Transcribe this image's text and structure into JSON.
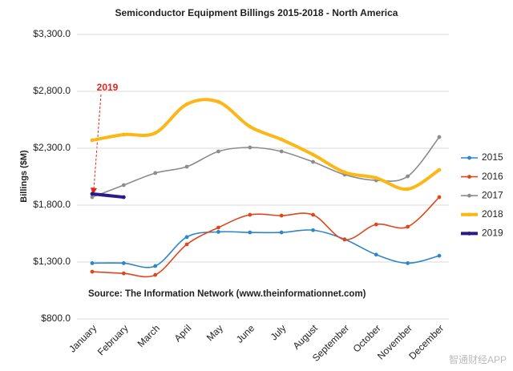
{
  "chart_data": {
    "type": "line",
    "title": "Semiconductor Equipment Billings 2015-2018 - North America",
    "y_label": "Billings ($M)",
    "categories": [
      "January",
      "February",
      "March",
      "April",
      "May",
      "June",
      "July",
      "August",
      "September",
      "October",
      "November",
      "December"
    ],
    "series": [
      {
        "name": "2015",
        "color": "#2e86c8",
        "values": [
          1290,
          1290,
          1265,
          1520,
          1565,
          1560,
          1560,
          1580,
          1500,
          1365,
          1290,
          1355
        ]
      },
      {
        "name": "2016",
        "color": "#e0461c",
        "values": [
          1215,
          1200,
          1187,
          1455,
          1603,
          1715,
          1708,
          1715,
          1497,
          1630,
          1610,
          1870
        ]
      },
      {
        "name": "2017",
        "color": "#8c8c8c",
        "values": [
          1870,
          1976,
          2082,
          2138,
          2272,
          2307,
          2272,
          2180,
          2068,
          2018,
          2053,
          2398
        ]
      },
      {
        "name": "2018",
        "color": "#fbb715",
        "values": [
          2370,
          2420,
          2434,
          2687,
          2708,
          2490,
          2377,
          2244,
          2089,
          2039,
          1941,
          2110
        ]
      },
      {
        "name": "2019",
        "color": "#2a1a8c",
        "values": [
          1899,
          1870,
          null,
          null,
          null,
          null,
          null,
          null,
          null,
          null,
          null,
          null
        ]
      }
    ],
    "ylim": [
      800,
      3300
    ],
    "yticks": [
      {
        "value": 800,
        "label": "$800.0"
      },
      {
        "value": 1300,
        "label": "$1,300.0"
      },
      {
        "value": 1800,
        "label": "$1,800.0"
      },
      {
        "value": 2300,
        "label": "$2,300.0"
      },
      {
        "value": 2800,
        "label": "$2,800.0"
      },
      {
        "value": 3300,
        "label": "$3,300.0"
      }
    ],
    "grid": true,
    "legend": "right",
    "smooth": true,
    "annotations": [
      "2019",
      "Source: The Information Network (www.theinformationnet.com)"
    ],
    "watermark": "智通财经APP"
  }
}
